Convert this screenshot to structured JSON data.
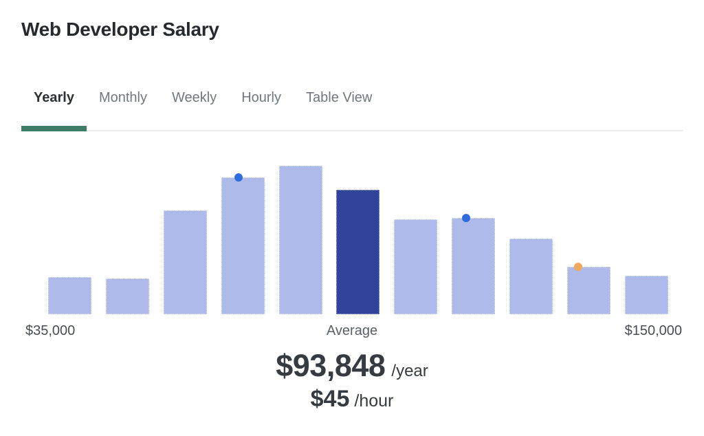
{
  "page": {
    "title": "Web Developer Salary"
  },
  "tabs": [
    {
      "label": "Yearly",
      "active": true
    },
    {
      "label": "Monthly",
      "active": false
    },
    {
      "label": "Weekly",
      "active": false
    },
    {
      "label": "Hourly",
      "active": false
    },
    {
      "label": "Table View",
      "active": false
    }
  ],
  "chart_data": {
    "type": "bar",
    "title": "Web Developer Salary",
    "values": [
      25,
      24,
      70,
      92,
      100,
      84,
      64,
      65,
      51,
      32,
      26
    ],
    "values_unit": "percent_of_tallest_bar",
    "highlight_index": 5,
    "highlight_label": "Average",
    "x_min_label": "$35,000",
    "x_max_label": "$150,000",
    "y_axis": false,
    "grid": false,
    "markers": [
      {
        "bar_index": 3,
        "name": "blue-marker-dot",
        "color": "#2e6ce0",
        "offset_pct": 40
      },
      {
        "bar_index": 7,
        "name": "blue-marker-dot",
        "color": "#2e6ce0",
        "offset_pct": 33
      },
      {
        "bar_index": 9,
        "name": "orange-marker-dot",
        "color": "#f0a95c",
        "offset_pct": 26
      }
    ],
    "colors": {
      "bar": "#aebae9",
      "highlight_bar": "#30449a"
    }
  },
  "axis": {
    "left": "$35,000",
    "center": "Average",
    "right": "$150,000"
  },
  "summary": {
    "yearly_value": "$93,848",
    "yearly_unit": "/year",
    "hourly_value": "$45",
    "hourly_unit": "/hour"
  },
  "colors": {
    "accent_green": "#3f7d68",
    "bar": "#aebae9",
    "highlight_bar": "#30449a",
    "blue_dot": "#2e6ce0",
    "orange_dot": "#f0a95c"
  }
}
